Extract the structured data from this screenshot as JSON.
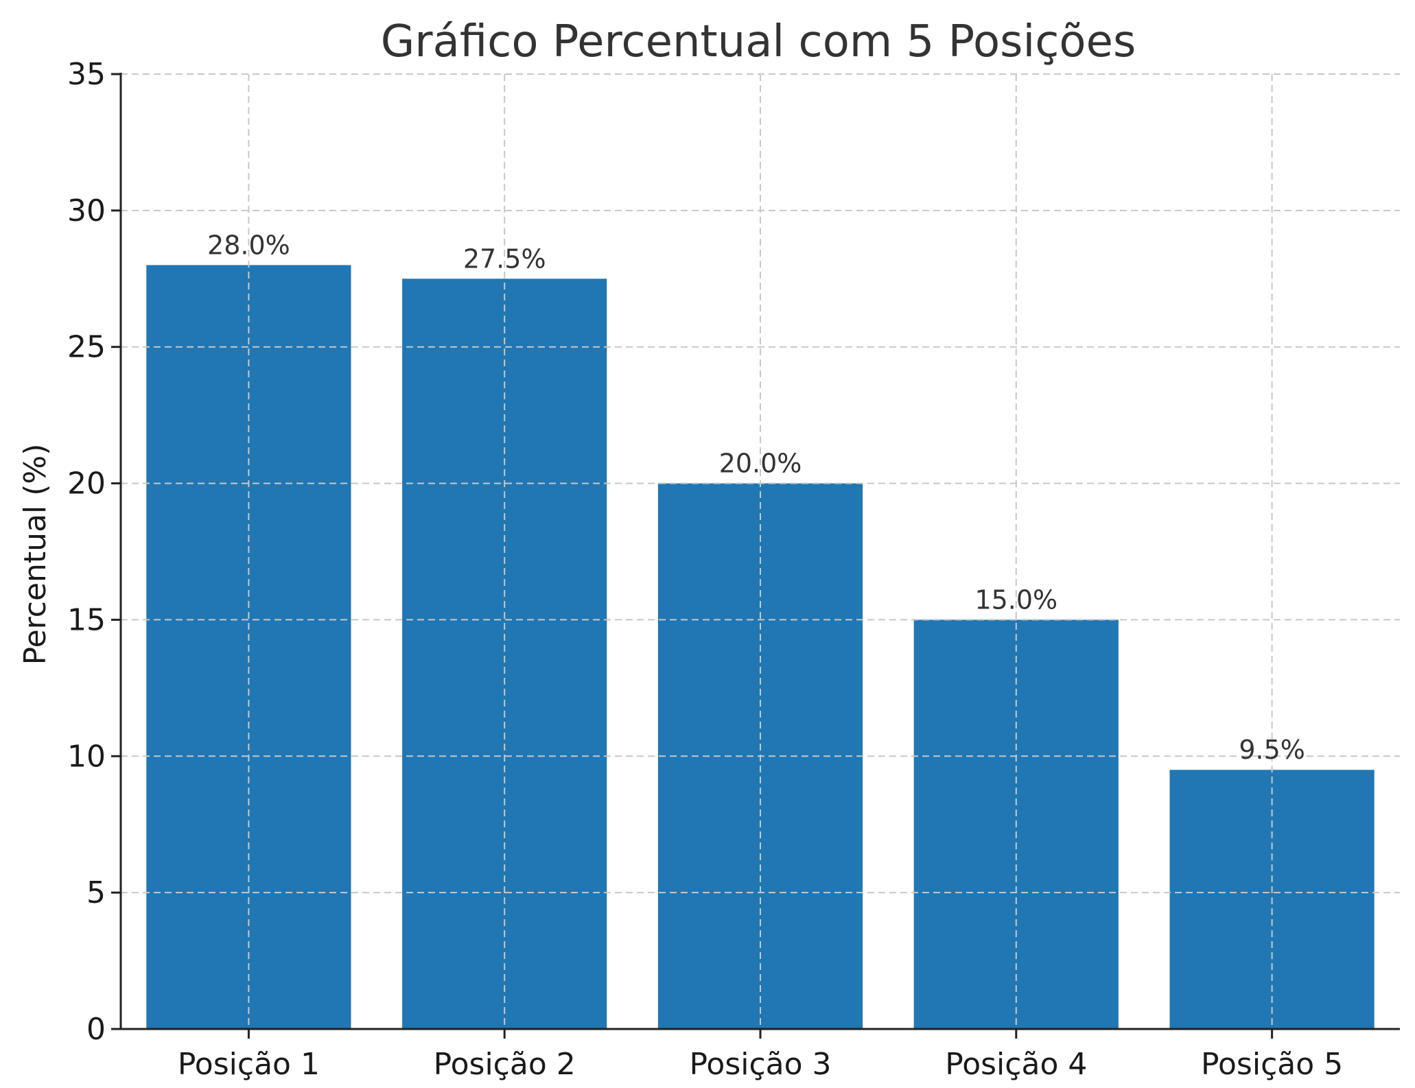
{
  "chart_data": {
    "type": "bar",
    "title": "Gráfico Percentual com 5 Posições",
    "xlabel": "",
    "ylabel": "Percentual (%)",
    "categories": [
      "Posição 1",
      "Posição 2",
      "Posição 3",
      "Posição 4",
      "Posição 5"
    ],
    "values": [
      28.0,
      27.5,
      20.0,
      15.0,
      9.5
    ],
    "value_labels": [
      "28.0%",
      "27.5%",
      "20.0%",
      "15.0%",
      "9.5%"
    ],
    "ylim": [
      0,
      35
    ],
    "yticks": [
      0,
      5,
      10,
      15,
      20,
      25,
      30,
      35
    ],
    "grid": true,
    "grid_style": "dashed",
    "bar_color": "#2077b4"
  }
}
